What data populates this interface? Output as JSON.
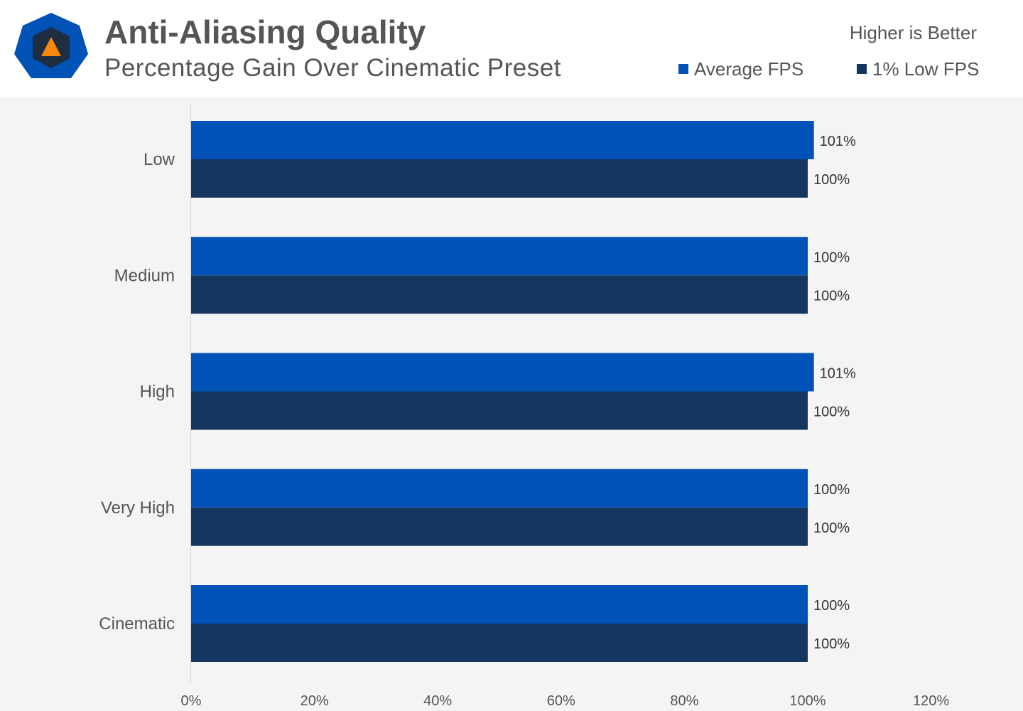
{
  "header": {
    "title": "Anti-Aliasing Quality",
    "subtitle": "Percentage Gain Over Cinematic Preset",
    "note": "Higher is Better",
    "logo_icon": "hexagon-triangle-logo-icon"
  },
  "colors": {
    "avg": "#0052b7",
    "low": "#15365f",
    "logo_outer": "#0052b7",
    "logo_inner": "#1e2d40",
    "logo_triangle": "#f7870f"
  },
  "chart_data": {
    "type": "bar",
    "orientation": "horizontal",
    "categories": [
      "Low",
      "Medium",
      "High",
      "Very High",
      "Cinematic"
    ],
    "series": [
      {
        "name": "Average FPS",
        "values": [
          101,
          100,
          101,
          100,
          100
        ],
        "labels": [
          "101%",
          "100%",
          "101%",
          "100%",
          "100%"
        ]
      },
      {
        "name": "1% Low FPS",
        "values": [
          100,
          100,
          100,
          100,
          100
        ],
        "labels": [
          "100%",
          "100%",
          "100%",
          "100%",
          "100%"
        ]
      }
    ],
    "xlim": [
      0,
      120
    ],
    "xticks": [
      0,
      20,
      40,
      60,
      80,
      100,
      120
    ],
    "xtick_labels": [
      "0%",
      "20%",
      "40%",
      "60%",
      "80%",
      "100%",
      "120%"
    ],
    "legend_position": "top-right",
    "grid": false
  }
}
